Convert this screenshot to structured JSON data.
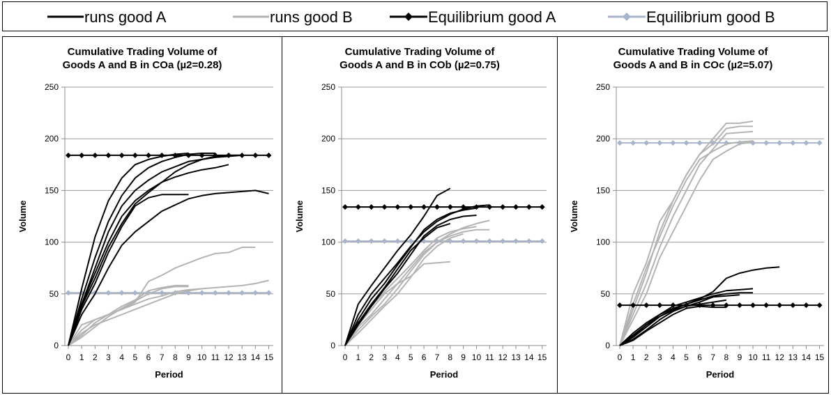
{
  "legend": {
    "items": [
      {
        "label": "runs good A",
        "color": "#000000",
        "marker": "none"
      },
      {
        "label": "runs good B",
        "color": "#b3b3b3",
        "marker": "none"
      },
      {
        "label": "Equilibrium good A",
        "color": "#000000",
        "marker": "diamond"
      },
      {
        "label": "Equilibrium good B",
        "color": "#a8b4cc",
        "marker": "diamond"
      }
    ]
  },
  "colors": {
    "runA": "#000000",
    "runB": "#b3b3b3",
    "eqA": "#000000",
    "eqB": "#a8b4cc"
  },
  "chart_data": [
    {
      "type": "line",
      "title": [
        "Cumulative Trading Volume of",
        "Goods A and B in COa (µ2=0.28)"
      ],
      "xlabel": "Period",
      "ylabel": "Volume",
      "xlim": [
        0,
        15
      ],
      "ylim": [
        0,
        250
      ],
      "yticks": [
        0,
        50,
        100,
        150,
        200,
        250
      ],
      "xticks": [
        0,
        1,
        2,
        3,
        4,
        5,
        6,
        7,
        8,
        9,
        10,
        11,
        12,
        13,
        14,
        15
      ],
      "grid": "horizontal",
      "equilibrium_A": 184,
      "equilibrium_B": 51,
      "runs_A": [
        [
          0,
          38,
          65,
          95,
          118,
          137,
          148,
          158,
          168,
          175,
          180,
          183,
          184,
          184
        ],
        [
          0,
          45,
          85,
          120,
          145,
          162,
          172,
          178,
          182,
          185,
          186,
          186
        ],
        [
          0,
          55,
          105,
          140,
          162,
          175,
          180,
          183,
          185,
          186
        ],
        [
          0,
          40,
          70,
          100,
          125,
          140,
          150,
          158,
          163,
          167,
          170,
          172,
          175
        ],
        [
          0,
          35,
          60,
          90,
          115,
          135,
          143,
          146,
          146,
          146
        ],
        [
          0,
          30,
          50,
          75,
          97,
          110,
          120,
          130,
          136,
          142,
          145,
          147,
          148,
          149,
          150,
          147
        ],
        [
          0,
          40,
          75,
          110,
          135,
          150,
          160,
          168,
          173,
          178,
          180,
          182,
          183,
          184
        ]
      ],
      "runs_B": [
        [
          0,
          15,
          25,
          30,
          35,
          42,
          62,
          68,
          75,
          80,
          85,
          89,
          90,
          95,
          95
        ],
        [
          0,
          12,
          20,
          25,
          30,
          35,
          40,
          45,
          50,
          53,
          55,
          56,
          57,
          58,
          60,
          63
        ],
        [
          0,
          10,
          22,
          30,
          38,
          44,
          53,
          56,
          58,
          58
        ],
        [
          0,
          8,
          18,
          28,
          36,
          43,
          50,
          55,
          57,
          57
        ],
        [
          0,
          20,
          25,
          30,
          35,
          40,
          45,
          48,
          52,
          54,
          55
        ]
      ]
    },
    {
      "type": "line",
      "title": [
        "Cumulative Trading Volume of",
        "Goods A and B in COb (µ2=0.75)"
      ],
      "xlabel": "Period",
      "ylabel": "Volume",
      "xlim": [
        0,
        15
      ],
      "ylim": [
        0,
        250
      ],
      "yticks": [
        0,
        50,
        100,
        150,
        200,
        250
      ],
      "xticks": [
        0,
        1,
        2,
        3,
        4,
        5,
        6,
        7,
        8,
        9,
        10,
        11,
        12,
        13,
        14,
        15
      ],
      "grid": "horizontal",
      "equilibrium_A": 134,
      "equilibrium_B": 101,
      "runs_A": [
        [
          0,
          40,
          58,
          75,
          92,
          107,
          125,
          145,
          152
        ],
        [
          0,
          30,
          50,
          65,
          80,
          96,
          110,
          120,
          127,
          132,
          135,
          136
        ],
        [
          0,
          25,
          45,
          60,
          78,
          95,
          112,
          122,
          128,
          131,
          133
        ],
        [
          0,
          20,
          38,
          55,
          70,
          88,
          106,
          116,
          122,
          125,
          126
        ],
        [
          0,
          22,
          40,
          56,
          74,
          92,
          104,
          114,
          118
        ]
      ],
      "runs_B": [
        [
          0,
          18,
          30,
          45,
          60,
          75,
          90,
          100,
          106,
          110,
          112,
          112
        ],
        [
          0,
          15,
          28,
          40,
          55,
          72,
          88,
          100,
          108,
          114,
          118,
          121
        ],
        [
          0,
          20,
          35,
          50,
          60,
          67,
          79,
          80,
          81
        ],
        [
          0,
          22,
          38,
          52,
          65,
          78,
          92,
          104,
          110,
          113,
          115
        ],
        [
          0,
          12,
          25,
          38,
          50,
          66,
          84,
          96,
          104,
          108
        ]
      ]
    },
    {
      "type": "line",
      "title": [
        "Cumulative Trading Volume of",
        "Goods A and B in COc (µ2=5.07)"
      ],
      "xlabel": "Period",
      "ylabel": "Volume",
      "xlim": [
        0,
        15
      ],
      "ylim": [
        0,
        250
      ],
      "yticks": [
        0,
        50,
        100,
        150,
        200,
        250
      ],
      "xticks": [
        0,
        1,
        2,
        3,
        4,
        5,
        6,
        7,
        8,
        9,
        10,
        11,
        12,
        13,
        14,
        15
      ],
      "grid": "horizontal",
      "equilibrium_A": 39,
      "equilibrium_B": 196,
      "runs_A": [
        [
          0,
          8,
          18,
          28,
          35,
          40,
          45,
          52,
          65,
          70,
          73,
          75,
          76
        ],
        [
          0,
          10,
          20,
          30,
          38,
          42,
          46,
          50,
          53,
          54,
          55
        ],
        [
          0,
          6,
          15,
          25,
          33,
          38,
          42,
          47,
          48,
          49
        ],
        [
          0,
          12,
          22,
          30,
          36,
          40,
          44,
          48,
          50,
          51,
          51
        ],
        [
          0,
          5,
          14,
          22,
          30,
          36,
          38,
          37,
          37
        ],
        [
          0,
          9,
          20,
          28,
          34,
          38,
          40,
          42,
          44
        ]
      ],
      "runs_B": [
        [
          0,
          50,
          80,
          120,
          140,
          165,
          185,
          200,
          215,
          215,
          217
        ],
        [
          0,
          35,
          70,
          110,
          140,
          165,
          185,
          195,
          210,
          212,
          212
        ],
        [
          0,
          30,
          60,
          95,
          125,
          150,
          175,
          190,
          205,
          206,
          207
        ],
        [
          0,
          25,
          50,
          85,
          110,
          135,
          160,
          180,
          188,
          195,
          197
        ],
        [
          0,
          40,
          75,
          105,
          135,
          160,
          180,
          188,
          195,
          197,
          198
        ]
      ]
    }
  ]
}
